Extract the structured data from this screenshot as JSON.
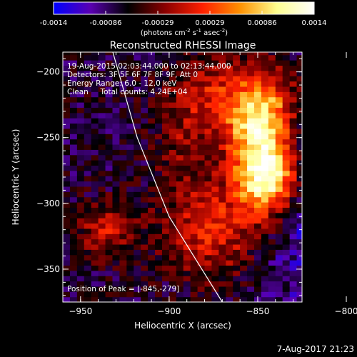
{
  "colorbar": {
    "ticks": [
      "-0.0014",
      "-0.00086",
      "-0.00029",
      "0.00029",
      "0.00086",
      "0.0014"
    ],
    "unit_text": "(photons cm",
    "unit_sup1": "-2",
    "unit_mid": " s",
    "unit_sup2": "-1",
    "unit_end": " asec",
    "unit_sup3": "-2",
    "unit_close": ")"
  },
  "annotations": {
    "line1": "19-Aug-2015 02:03:44.000 to 02:13:44.000",
    "line2": "Detectors: 3F 5F 6F 7F 8F 9F, Att 0",
    "line3": "Energy Range: 6.0 - 12.0 keV",
    "line4": "Clean     Total counts: 4.24E+04",
    "peak": "Position of Peak = [-845,-279]"
  },
  "footer": {
    "date": "7-Aug-2017 21:23"
  },
  "chart_data": {
    "type": "heatmap",
    "title": "Reconstructed RHESSI Image",
    "xlabel": "Heliocentric X (arcsec)",
    "ylabel": "Heliocentric Y (arcsec)",
    "xlim": [
      -960,
      -825
    ],
    "ylim": [
      -375,
      -185
    ],
    "xticks": [
      {
        "value": -950,
        "label": "−950"
      },
      {
        "value": -900,
        "label": "−900"
      },
      {
        "value": -850,
        "label": "−850"
      },
      {
        "value": -800,
        "label": "−800"
      }
    ],
    "yticks": [
      {
        "value": -200,
        "label": "−200"
      },
      {
        "value": -250,
        "label": "−250"
      },
      {
        "value": -300,
        "label": "−300"
      },
      {
        "value": -350,
        "label": "−350"
      }
    ],
    "colorscale_range": [
      -0.0014,
      0.0014
    ],
    "colormap": [
      "#0000ff",
      "#5a00b0",
      "#000000",
      "#8b0000",
      "#ff2000",
      "#ff9000",
      "#ffff90",
      "#ffffff"
    ],
    "peak": {
      "x": -845,
      "y": -279
    },
    "limb": [
      {
        "x": -932,
        "y": -184
      },
      {
        "x": -918,
        "y": -250
      },
      {
        "x": -900,
        "y": -310
      },
      {
        "x": -870,
        "y": -375
      }
    ],
    "sources": [
      {
        "x": -845,
        "y": -279,
        "sx": 12,
        "sy": 20,
        "amp": 1.0
      },
      {
        "x": -853,
        "y": -240,
        "sx": 12,
        "sy": 20,
        "amp": 0.5
      },
      {
        "x": -872,
        "y": -215,
        "sx": 18,
        "sy": 20,
        "amp": 0.3
      },
      {
        "x": -842,
        "y": -225,
        "sx": 12,
        "sy": 20,
        "amp": 0.35
      },
      {
        "x": -875,
        "y": -320,
        "sx": 20,
        "sy": 25,
        "amp": 0.38
      },
      {
        "x": -935,
        "y": -320,
        "sx": 12,
        "sy": 14,
        "amp": 0.3
      },
      {
        "x": -890,
        "y": -255,
        "sx": 12,
        "sy": 25,
        "amp": 0.2
      }
    ],
    "negative_region": {
      "x": -815,
      "y": -310,
      "sx": 25,
      "sy": 55,
      "amp": -0.25
    }
  }
}
